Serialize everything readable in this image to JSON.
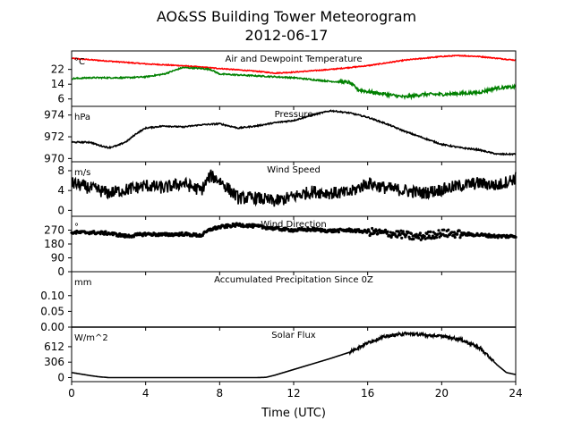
{
  "figure": {
    "title": "AO&SS Building Tower Meteorogram",
    "subtitle": "2012-06-17",
    "xlabel": "Time (UTC)"
  },
  "chart_data": [
    {
      "type": "line",
      "title": "Air and Dewpoint Temperature",
      "ylabel": "°C",
      "ylim": [
        2,
        32
      ],
      "yticks": [
        6,
        14,
        22
      ],
      "xlim": [
        0,
        24
      ],
      "xticks": [
        0,
        4,
        8,
        12,
        16,
        20,
        24
      ],
      "colors": [
        "#ff0000",
        "#008000"
      ],
      "series": [
        {
          "x": [
            0,
            2,
            4,
            6,
            8,
            10,
            11,
            12,
            14,
            16,
            18,
            20,
            21,
            22,
            24
          ],
          "values": [
            28,
            26.5,
            25,
            24,
            22.5,
            21,
            20,
            20.5,
            22,
            24,
            27,
            29,
            29.5,
            29,
            27
          ]
        },
        {
          "x": [
            0,
            1,
            2,
            3,
            4,
            5,
            6,
            7,
            7.5,
            8,
            10,
            12,
            14,
            15,
            15.5,
            16,
            17,
            18,
            19,
            20,
            22,
            23,
            24
          ],
          "values": [
            17,
            17.5,
            17.5,
            17.5,
            18,
            19.5,
            23,
            22.5,
            22,
            19.5,
            18.5,
            17.5,
            15.5,
            15,
            11,
            10,
            8.5,
            7,
            8.5,
            8.5,
            9.5,
            12,
            12.5
          ]
        }
      ]
    },
    {
      "type": "line",
      "title": "Pressure",
      "ylabel": "hPa",
      "ylim": [
        969.7,
        974.8
      ],
      "yticks": [
        970,
        972,
        974
      ],
      "colors": [
        "#000000"
      ],
      "series": [
        {
          "x": [
            0,
            1,
            1.5,
            2,
            2.5,
            3,
            3.5,
            4,
            5,
            6,
            7,
            8,
            9,
            10,
            11,
            12,
            13,
            14,
            15,
            16,
            17,
            18,
            19,
            20,
            21,
            22,
            23,
            24
          ],
          "values": [
            971.5,
            971.5,
            971.2,
            971,
            971.2,
            971.6,
            972.3,
            972.8,
            973,
            972.9,
            973.1,
            973.2,
            972.8,
            973,
            973.3,
            973.5,
            974,
            974.4,
            974.2,
            973.8,
            973.2,
            972.5,
            971.9,
            971.3,
            971,
            970.8,
            970.4,
            970.4
          ]
        }
      ]
    },
    {
      "type": "line",
      "title": "Wind Speed",
      "ylabel": "m/s",
      "ylim": [
        -1.2,
        9.8
      ],
      "yticks": [
        0,
        4,
        8
      ],
      "colors": [
        "#000000"
      ],
      "series": [
        {
          "x": [
            0,
            1,
            2,
            3,
            4,
            5,
            6,
            7,
            7.5,
            8,
            9,
            10,
            11,
            12,
            13,
            14,
            15,
            16,
            17,
            18,
            19,
            20,
            21,
            22,
            23,
            24
          ],
          "values": [
            5.5,
            4.5,
            3.5,
            4.2,
            5,
            4.5,
            5.5,
            4,
            7,
            6,
            2.5,
            2.5,
            1.8,
            2.8,
            3.8,
            3.5,
            3.5,
            5.5,
            4.5,
            4,
            3.5,
            4.2,
            5,
            5.5,
            5,
            6.5
          ]
        }
      ]
    },
    {
      "type": "scatter",
      "title": "Wind Direction",
      "ylabel": "°",
      "ylim": [
        0,
        360
      ],
      "yticks": [
        0,
        90,
        180,
        270
      ],
      "colors": [
        "#000000"
      ],
      "series": [
        {
          "x": [
            0,
            1,
            2,
            3,
            4,
            5,
            6,
            7,
            7.5,
            8,
            9,
            10,
            11,
            12,
            13,
            14,
            15,
            16,
            17,
            18,
            18.5,
            19,
            20,
            21,
            22,
            23,
            24
          ],
          "values": [
            255,
            255,
            250,
            230,
            245,
            240,
            245,
            235,
            275,
            290,
            305,
            295,
            280,
            270,
            275,
            265,
            270,
            260,
            250,
            240,
            225,
            230,
            250,
            245,
            240,
            230,
            230
          ]
        }
      ]
    },
    {
      "type": "line",
      "title": "Accumulated Precipitation Since 0Z",
      "ylabel": "mm",
      "ylim": [
        0,
        0.176
      ],
      "yticks": [
        0.0,
        0.05,
        0.1
      ],
      "ytick_labels": [
        "0.00",
        "0.05",
        "0.10"
      ],
      "colors": [
        "#000000"
      ],
      "series": [
        {
          "x": [
            0,
            24
          ],
          "values": [
            0,
            0
          ]
        }
      ]
    },
    {
      "type": "line",
      "title": "Solar Flux",
      "ylabel": "W/m^2",
      "ylim": [
        -80,
        1000
      ],
      "yticks": [
        0,
        306,
        612
      ],
      "colors": [
        "#000000"
      ],
      "series": [
        {
          "x": [
            0,
            0.5,
            1,
            1.5,
            2,
            3,
            4,
            5,
            6,
            7,
            8,
            9,
            10,
            10.5,
            11,
            12,
            13,
            14,
            15,
            16,
            17,
            18,
            18.5,
            19,
            20,
            21,
            22,
            22.5,
            23,
            23.5,
            24
          ],
          "values": [
            100,
            70,
            40,
            15,
            0,
            0,
            0,
            0,
            0,
            0,
            0,
            0,
            0,
            5,
            50,
            160,
            270,
            380,
            500,
            690,
            820,
            870,
            860,
            850,
            820,
            760,
            600,
            430,
            250,
            100,
            60
          ]
        }
      ]
    }
  ]
}
